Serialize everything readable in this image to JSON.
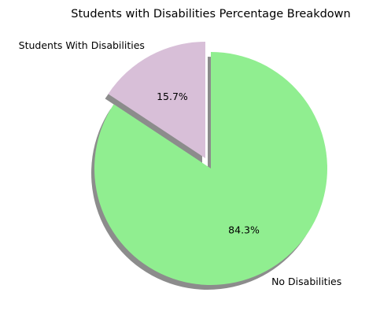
{
  "chart_data": {
    "type": "pie",
    "title": "Students with Disabilities Percentage Breakdown",
    "slices": [
      {
        "label": "Students With Disabilities",
        "value": 15.7,
        "pct_label": "15.7%",
        "color": "#d8bfd8",
        "exploded": true
      },
      {
        "label": "No Disabilities",
        "value": 84.3,
        "pct_label": "84.3%",
        "color": "#90ee90",
        "exploded": false
      }
    ],
    "start_angle_deg": 90,
    "direction": "counterclockwise",
    "shadow": true,
    "legend": "none"
  }
}
